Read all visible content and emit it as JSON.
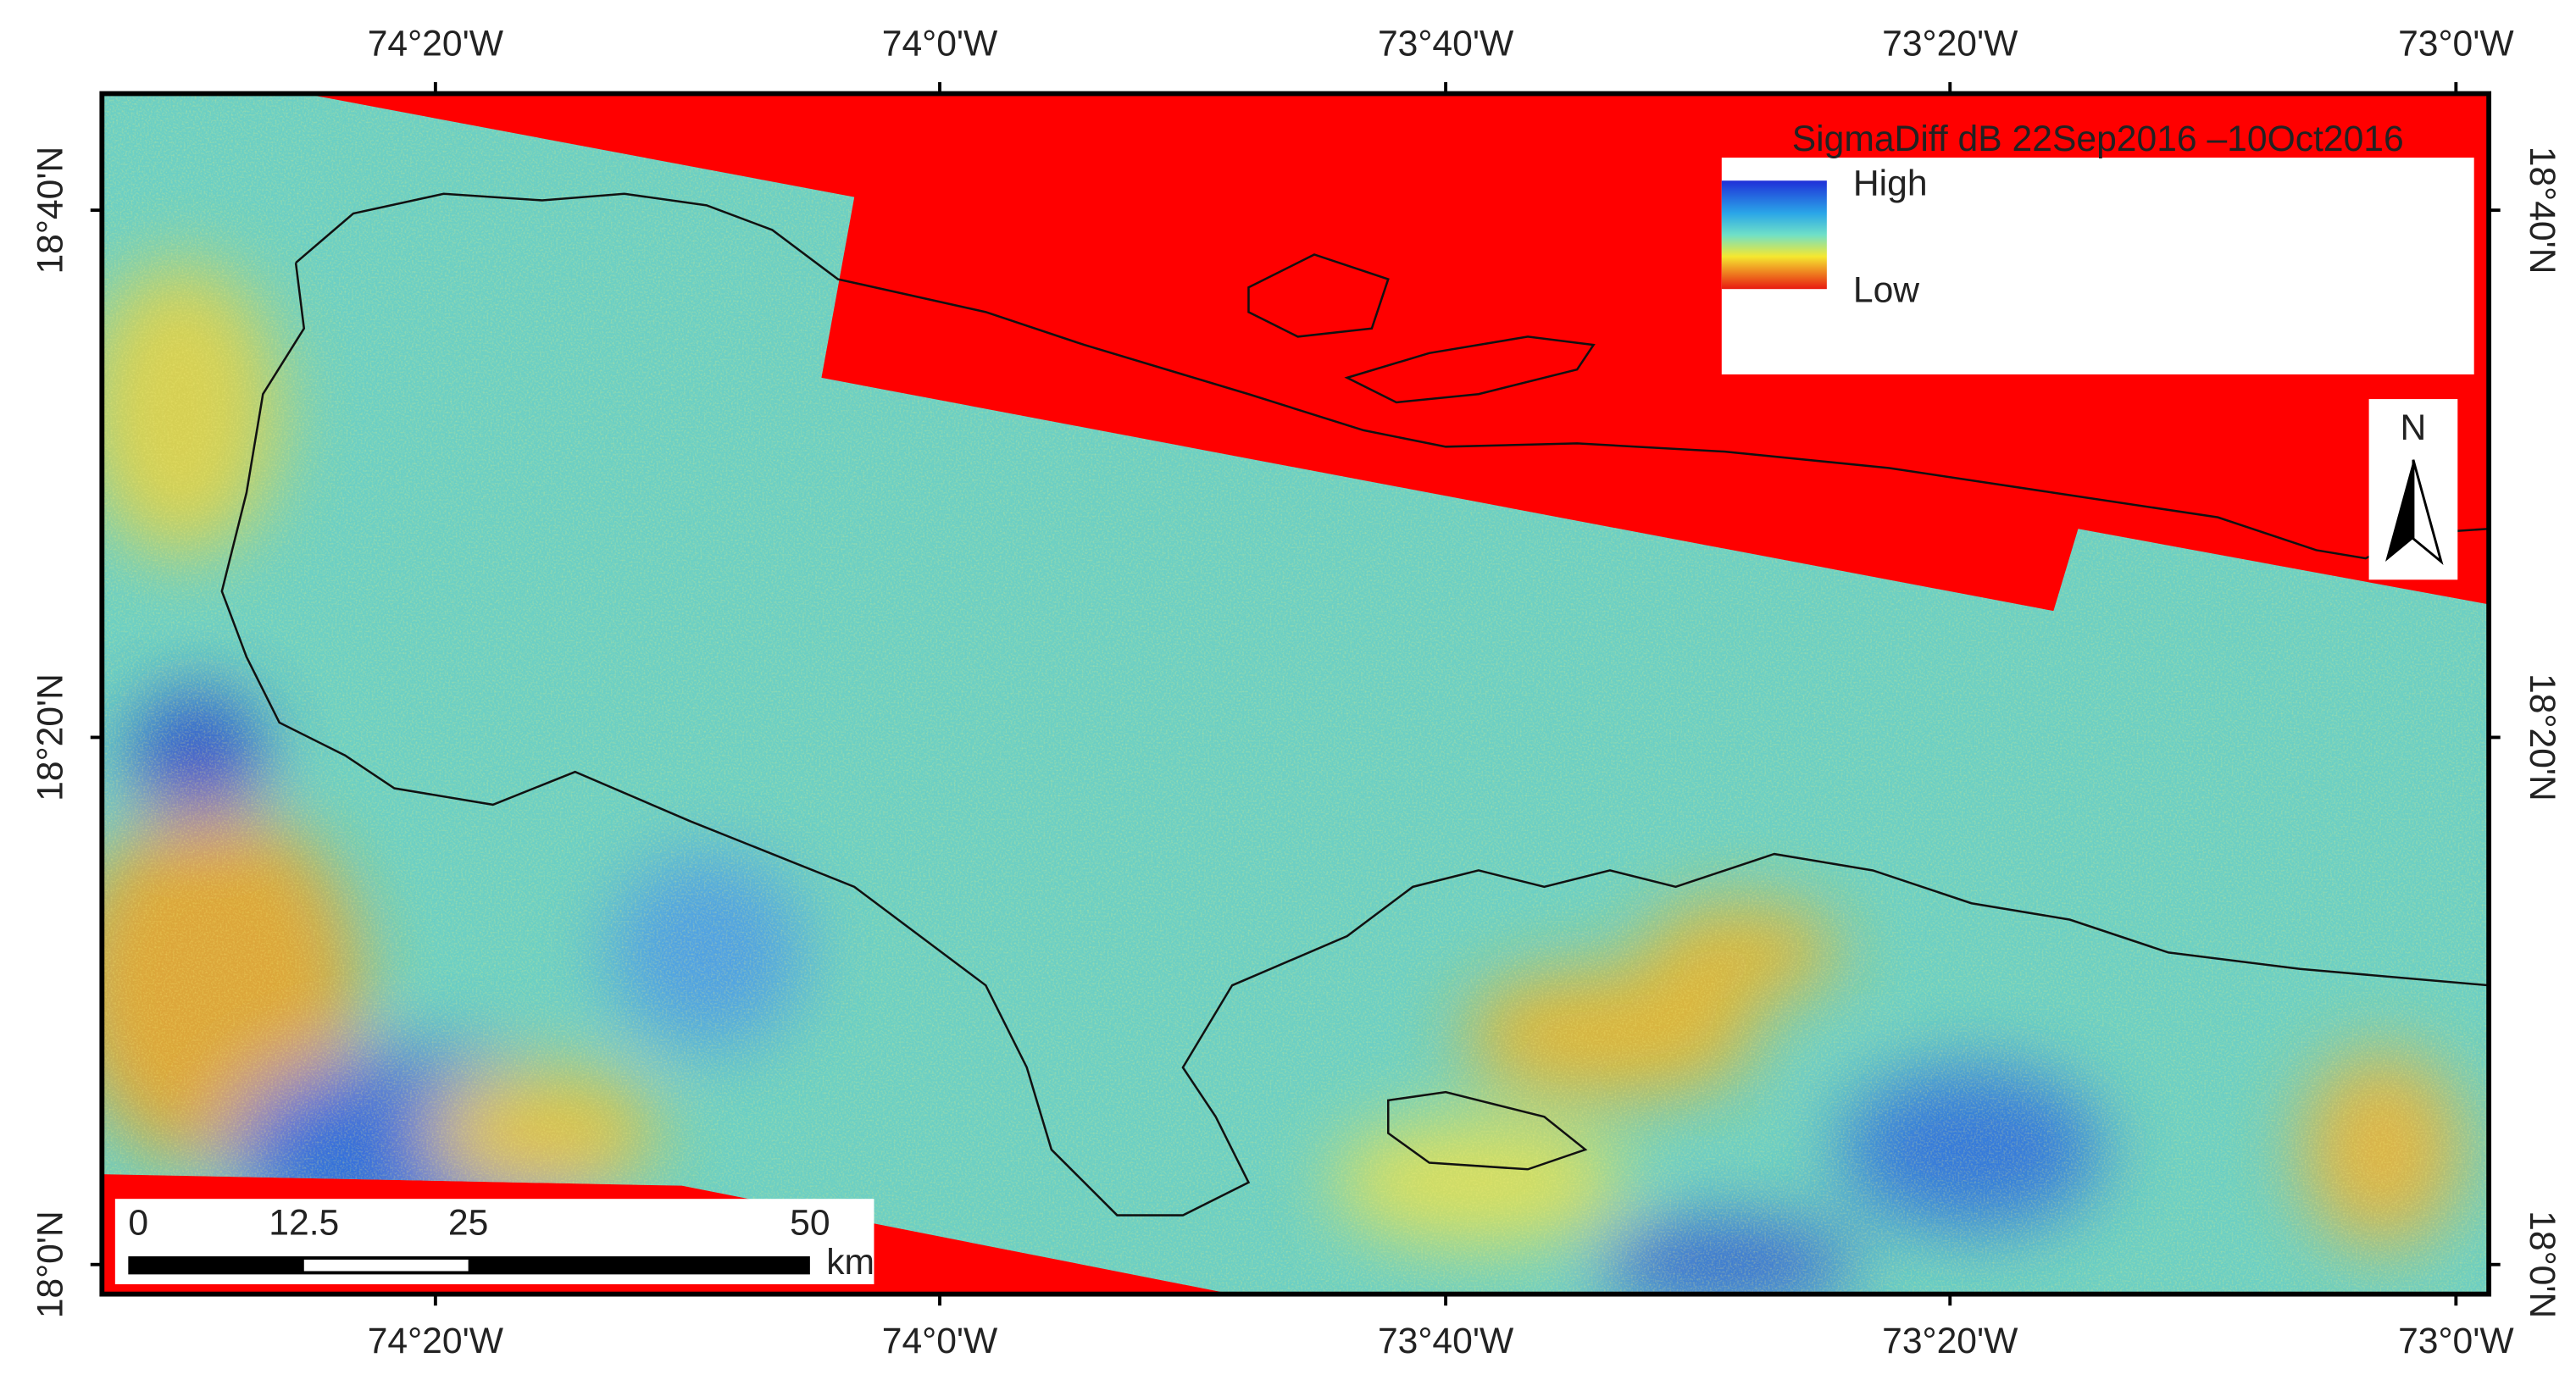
{
  "map": {
    "legend": {
      "title": "SigmaDiff dB 22Sep2016 –10Oct2016",
      "high": "High",
      "low": "Low"
    },
    "north": "N",
    "scale_bar": {
      "labels": [
        "0",
        "12.5",
        "25",
        "50"
      ],
      "unit": "km"
    },
    "longitude_labels": [
      "74°20'W",
      "74°0'W",
      "73°40'W",
      "73°20'W",
      "73°0'W"
    ],
    "latitude_labels": [
      "18°40'N",
      "18°20'N",
      "18°0'N"
    ]
  }
}
